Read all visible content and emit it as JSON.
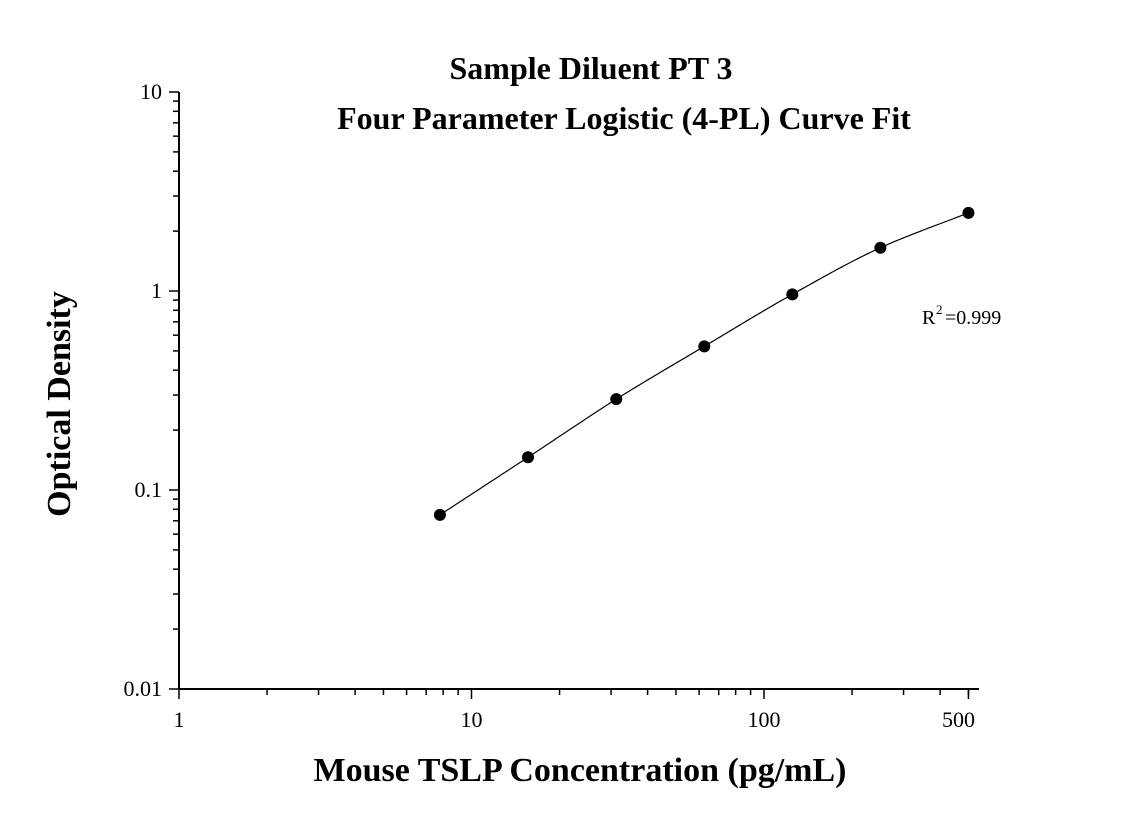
{
  "chart_data": {
    "type": "scatter",
    "title": "Sample Diluent PT 3",
    "subtitle": "Four Parameter Logistic (4-PL) Curve Fit",
    "xlabel": "Mouse TSLP Concentration (pg/mL)",
    "ylabel": "Optical Density",
    "xscale": "log",
    "yscale": "log",
    "xlim": [
      1,
      500
    ],
    "ylim": [
      0.01,
      10
    ],
    "x_ticks": [
      1,
      10,
      100,
      500
    ],
    "x_tick_labels": [
      "1",
      "10",
      "100",
      "500"
    ],
    "y_ticks": [
      0.01,
      0.1,
      1,
      10
    ],
    "y_tick_labels": [
      "0.01",
      "0.1",
      "1",
      "10"
    ],
    "grid": false,
    "series": [
      {
        "x": [
          7.8,
          15.6,
          31.25,
          62.5,
          125,
          250,
          500
        ],
        "y": [
          0.075,
          0.146,
          0.286,
          0.527,
          0.962,
          1.65,
          2.47
        ],
        "marker": "filled-circle",
        "color": "#000000",
        "fit": "4-PL"
      }
    ],
    "annotations": {
      "r_label": "R",
      "r_sup": "2",
      "r_value": "=0.999"
    }
  }
}
